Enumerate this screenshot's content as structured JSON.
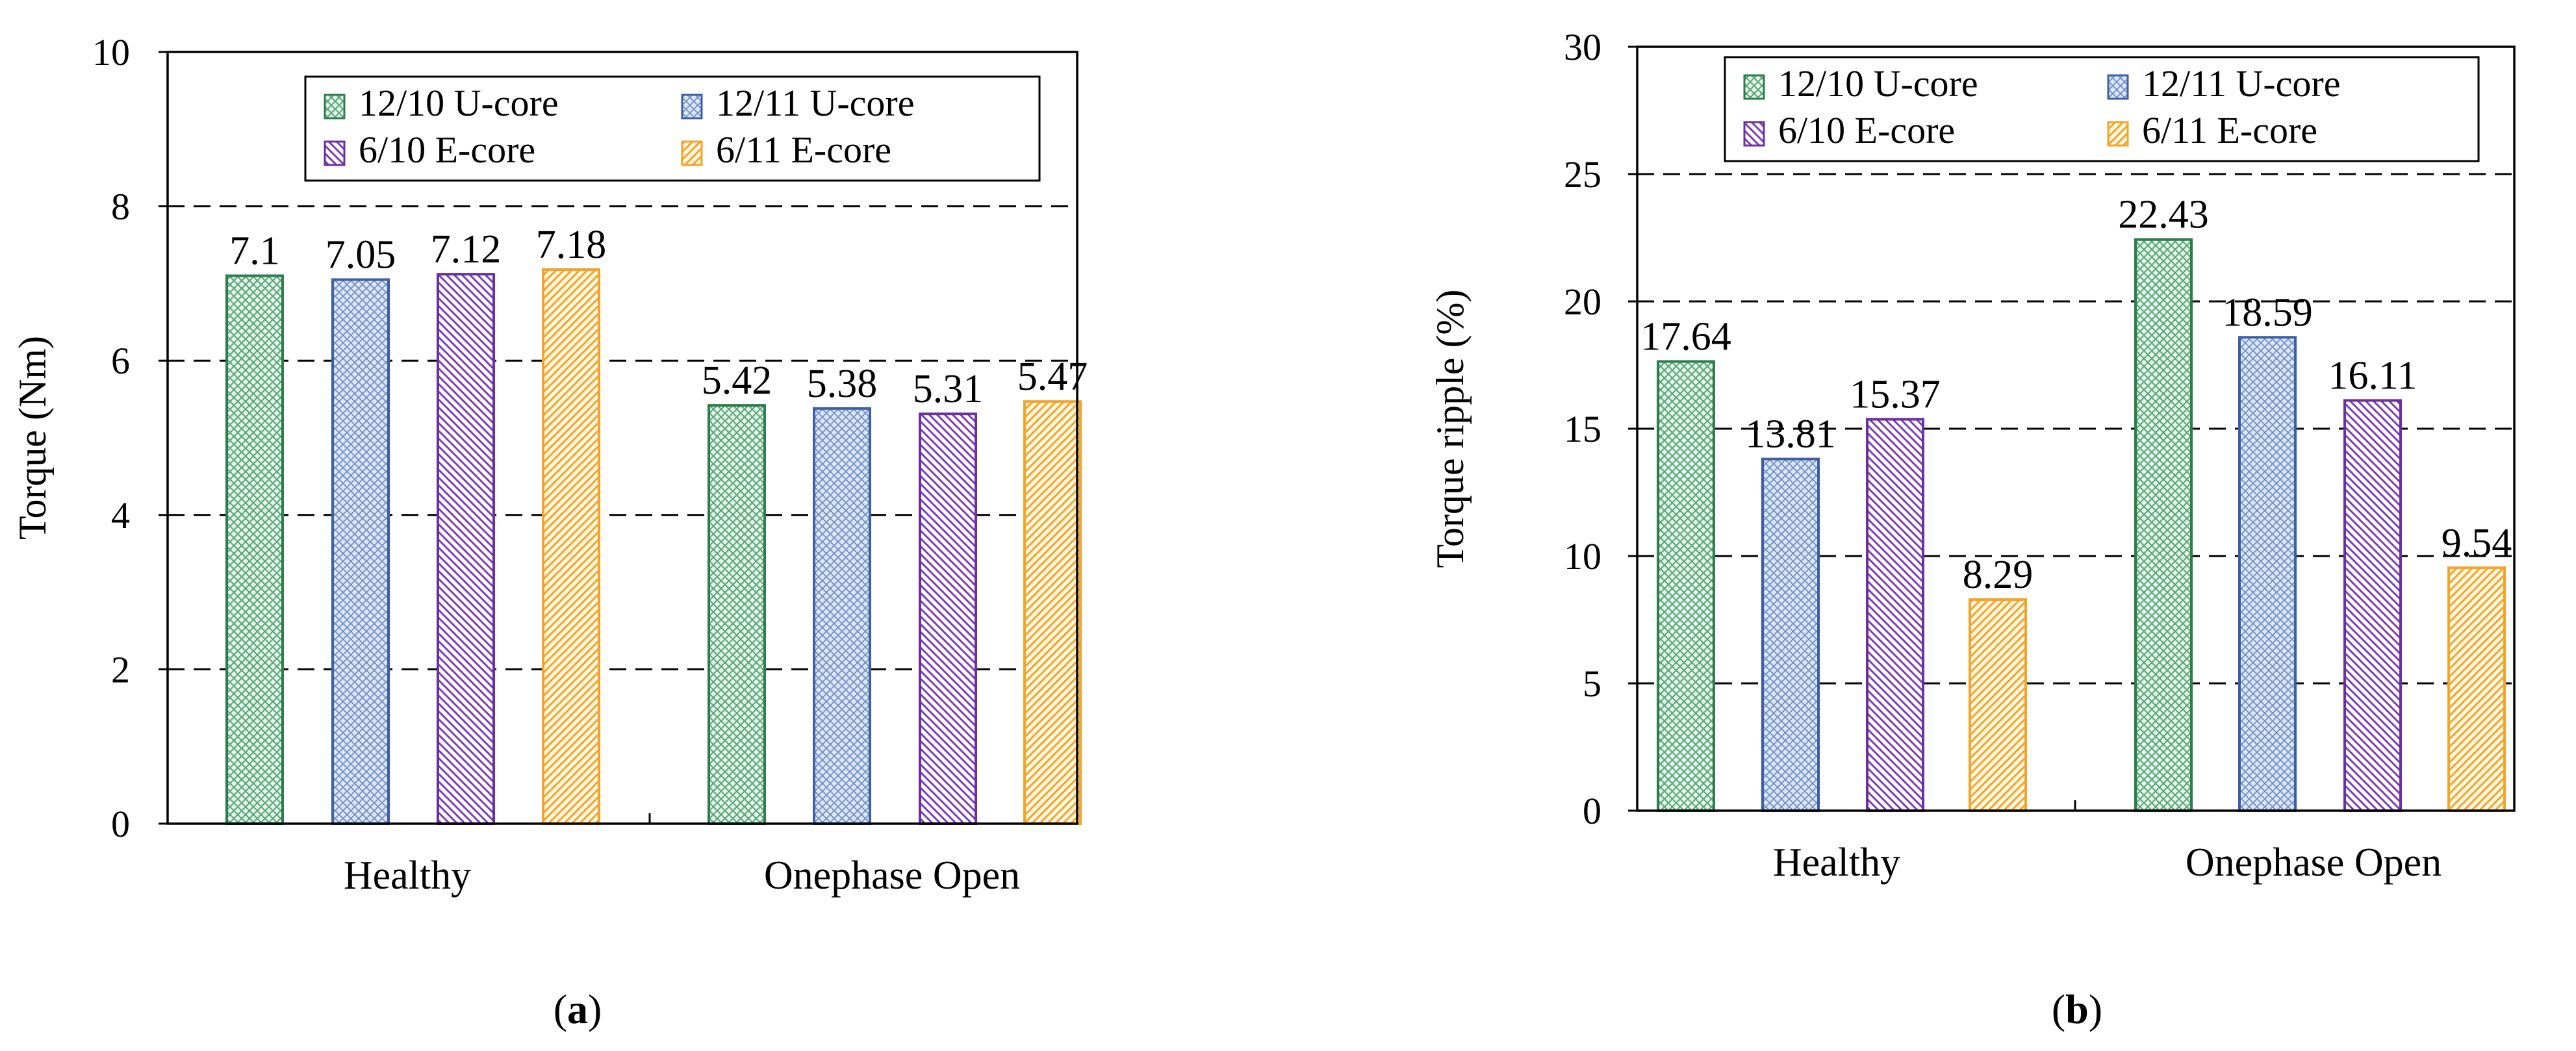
{
  "colors": {
    "series_stroke": [
      "#2e7d4f",
      "#3e5fa6",
      "#6b2fa0",
      "#f2a52b"
    ],
    "series_hatch": [
      "#5aa97a",
      "#6f8fc8",
      "#7d3fb5",
      "#f5a623"
    ],
    "series_fill": [
      "#e9f4ed",
      "#dde6f4",
      "#ffffff",
      "#fff6e6"
    ],
    "grid": "#000000"
  },
  "chart_data": [
    {
      "type": "bar",
      "panel_label": "a",
      "categories": [
        "Healthy",
        "Onephase Open"
      ],
      "series": [
        {
          "name": "12/10 U-core",
          "values": [
            7.1,
            5.42
          ],
          "labels": [
            "7.1",
            "5.42"
          ]
        },
        {
          "name": "12/11 U-core",
          "values": [
            7.05,
            5.38
          ],
          "labels": [
            "7.05",
            "5.38"
          ]
        },
        {
          "name": "6/10 E-core",
          "values": [
            7.12,
            5.31
          ],
          "labels": [
            "7.12",
            "5.31"
          ]
        },
        {
          "name": "6/11 E-core",
          "values": [
            7.18,
            5.47
          ],
          "labels": [
            "7.18",
            "5.47"
          ]
        }
      ],
      "ylabel": "Torque (Nm)",
      "ylim": [
        0,
        10
      ],
      "yticks": [
        "0",
        "2",
        "4",
        "6",
        "8",
        "10"
      ],
      "grid": "dashed horizontal",
      "legend_position": "top-center"
    },
    {
      "type": "bar",
      "panel_label": "b",
      "categories": [
        "Healthy",
        "Onephase Open"
      ],
      "series": [
        {
          "name": "12/10 U-core",
          "values": [
            17.64,
            22.43
          ],
          "labels": [
            "17.64",
            "22.43"
          ]
        },
        {
          "name": "12/11 U-core",
          "values": [
            13.81,
            18.59
          ],
          "labels": [
            "13.81",
            "18.59"
          ]
        },
        {
          "name": "6/10 E-core",
          "values": [
            15.37,
            16.11
          ],
          "labels": [
            "15.37",
            "16.11"
          ]
        },
        {
          "name": "6/11 E-core",
          "values": [
            8.29,
            9.54
          ],
          "labels": [
            "8.29",
            "9.54"
          ]
        }
      ],
      "ylabel": "Torque  ripple  (%)",
      "ylim": [
        0,
        30
      ],
      "yticks": [
        "0",
        "5",
        "10",
        "15",
        "20",
        "25",
        "30"
      ],
      "grid": "dashed horizontal",
      "legend_position": "top-center"
    }
  ]
}
